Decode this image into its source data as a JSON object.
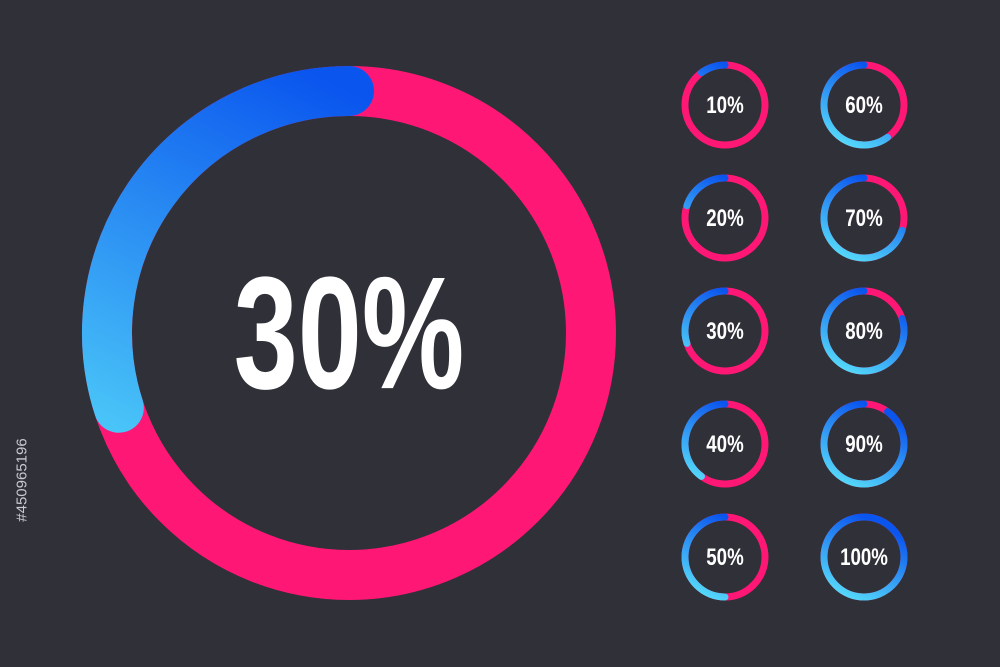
{
  "main": {
    "value": 30,
    "label": "30%"
  },
  "rings": [
    {
      "value": 10,
      "label": "10%"
    },
    {
      "value": 20,
      "label": "20%"
    },
    {
      "value": 30,
      "label": "30%"
    },
    {
      "value": 40,
      "label": "40%"
    },
    {
      "value": 50,
      "label": "50%"
    },
    {
      "value": 60,
      "label": "60%"
    },
    {
      "value": 70,
      "label": "70%"
    },
    {
      "value": 80,
      "label": "80%"
    },
    {
      "value": 90,
      "label": "90%"
    },
    {
      "value": 100,
      "label": "100%"
    }
  ],
  "stock_id": "#450965196"
}
